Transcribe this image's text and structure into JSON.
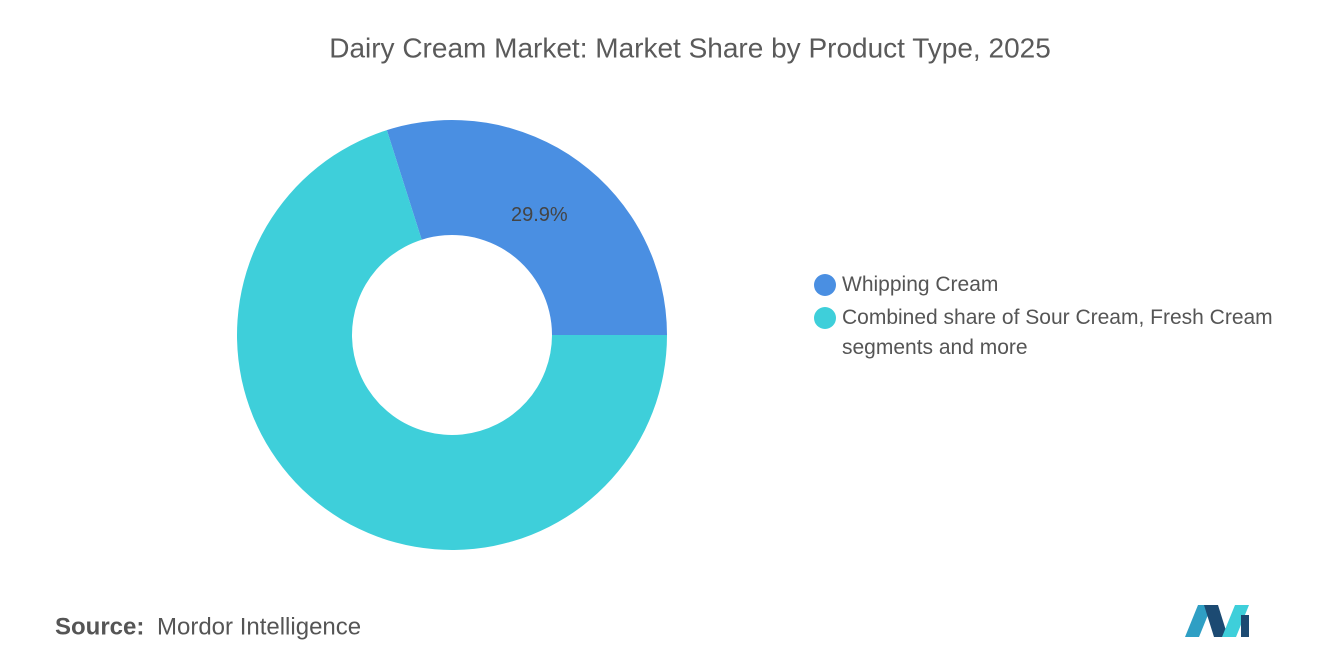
{
  "chart_data": {
    "type": "donut",
    "title": "Dairy Cream Market: Market Share by Product Type, 2025",
    "categories": [
      "Whipping Cream",
      "Combined share of Sour Cream, Fresh Cream segments and more"
    ],
    "values": [
      29.9,
      70.1
    ],
    "value_labels": [
      "29.9%",
      null
    ],
    "colors": [
      "#4a8fe2",
      "#3ecfda"
    ],
    "legend": "right",
    "source_label": "Source:",
    "source": "Mordor Intelligence"
  }
}
